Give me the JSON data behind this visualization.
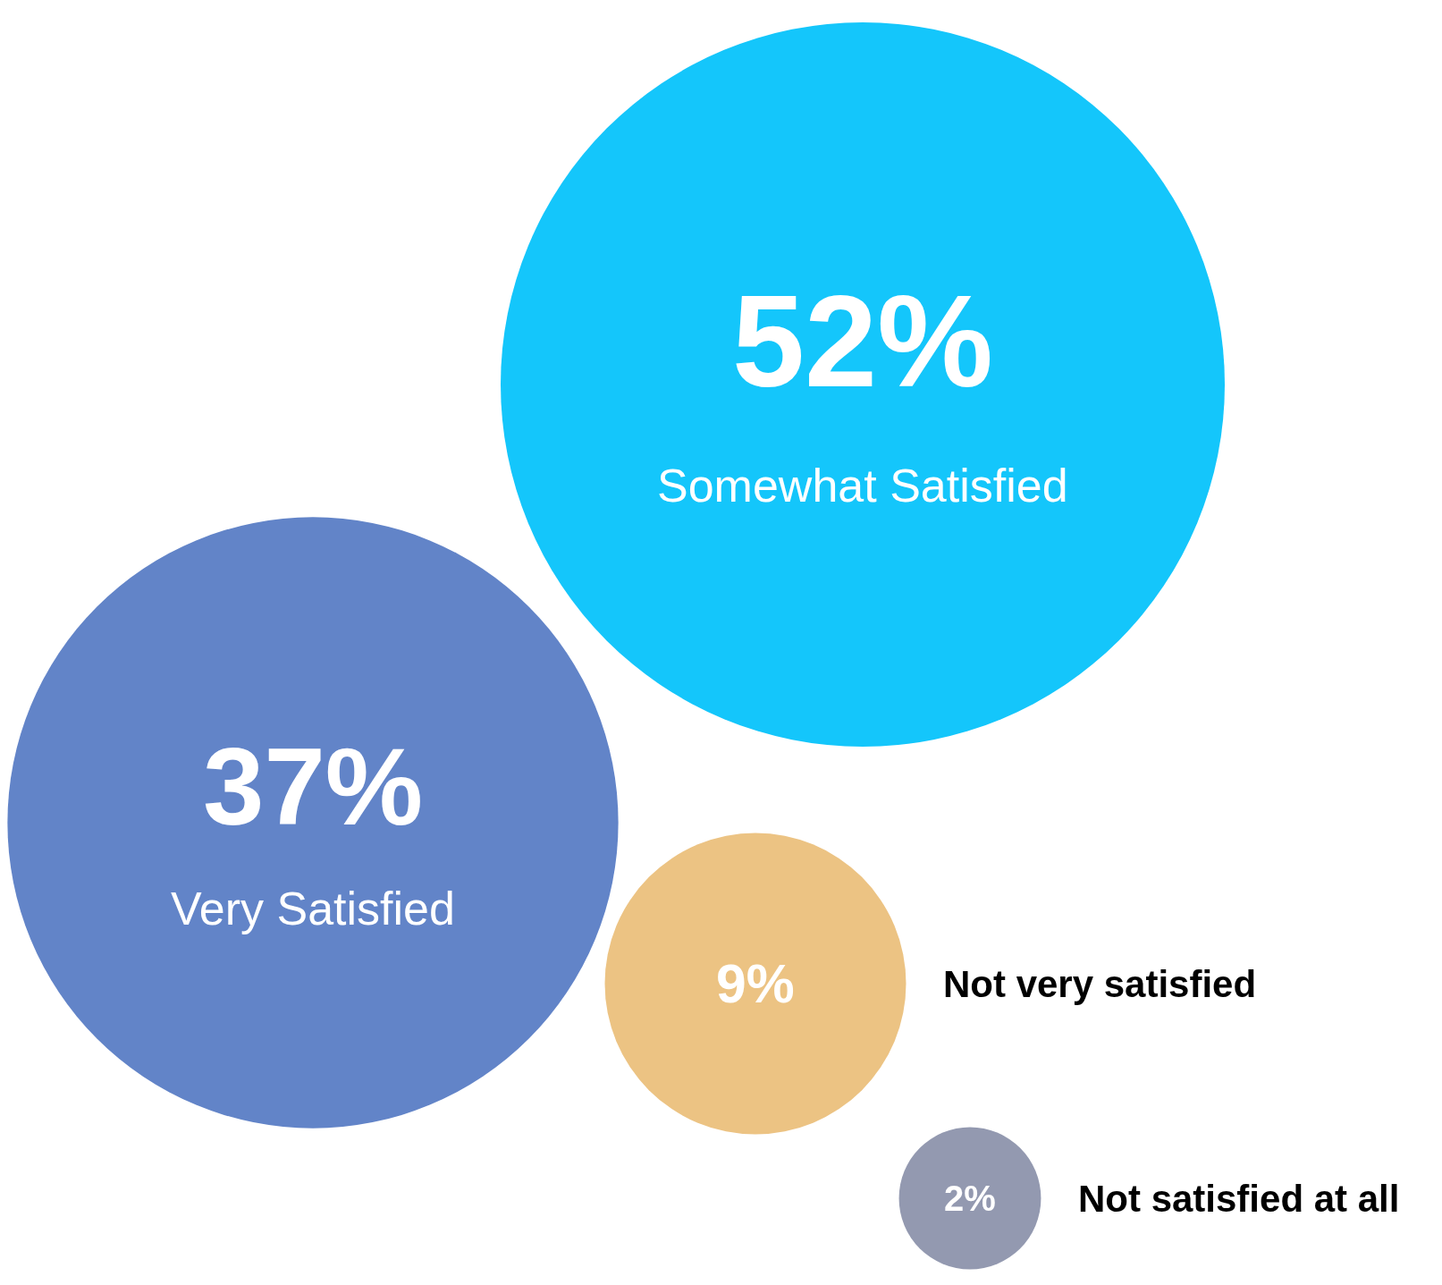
{
  "chart_data": {
    "type": "other",
    "categories": [
      "Somewhat Satisfied",
      "Very Satisfied",
      "Not very satisfied",
      "Not satisfied at all"
    ],
    "values": [
      52,
      37,
      9,
      2
    ],
    "value_labels": [
      "52%",
      "37%",
      "9%",
      "2%"
    ],
    "colors": [
      "#14c6fb",
      "#6284c8",
      "#ecc383",
      "#9399b0"
    ]
  }
}
